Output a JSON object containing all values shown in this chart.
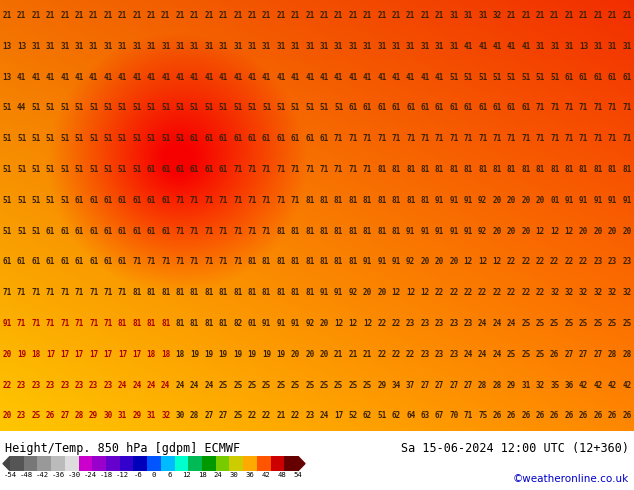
{
  "title_left": "Height/Temp. 850 hPa [gdpm] ECMWF",
  "title_right": "Sa 15-06-2024 12:00 UTC (12+360)",
  "credit": "©weatheronline.co.uk",
  "colorbar_ticks": [
    -54,
    -48,
    -42,
    -36,
    -30,
    -24,
    -18,
    -12,
    -6,
    0,
    6,
    12,
    18,
    24,
    30,
    36,
    42,
    48,
    54
  ],
  "colorbar_colors": [
    "#555555",
    "#777777",
    "#999999",
    "#bbbbbb",
    "#dddddd",
    "#cc00cc",
    "#9900cc",
    "#6600cc",
    "#3300cc",
    "#0000bb",
    "#0055ff",
    "#00bbff",
    "#00ffcc",
    "#00bb55",
    "#009900",
    "#77cc00",
    "#cccc00",
    "#ffaa00",
    "#ff5500",
    "#cc0000",
    "#660000"
  ],
  "numbers_text": [
    "21 21 21 21 21 21 21 21 21 21 21 21 21 21 21 21 21 21 21 21 21 21 21 21 21 21 21 21 21 21 21 31 31 31 32 21 21 21 21 21 21 21 21 21",
    "13 13 31 31 31 31 31 31 31 31 31 31 31 31 31 31 31 31 31 31 31 31 31 31 31 31 31 31 31 31 31 31 41 41 41 41 41 31 31 31 13 31 31 31",
    "13 41 41 41 41 41 41 41 41 41 41 41 41 41 41 41 41 41 41 41 41 41 41 41 41 41 41 41 41 41 41 51 51 51 51 51 51 51 51 61 61 61 61 61",
    "51 44 51 51 51 51 51 51 51 51 51 51 51 51 51 51 51 51 51 51 51 51 51 51 61 61 61 61 61 61 61 61 61 61 61 61 61 71 71 71 71 71 71 71",
    "51 51 51 51 51 51 51 51 51 51 51 51 51 61 61 61 61 61 61 61 61 61 61 71 71 71 71 71 71 71 71 71 71 71 71 71 71 71 71 71 71 71 71 71",
    "51 51 51 51 51 51 51 51 51 51 61 61 61 61 61 61 71 71 71 71 71 71 71 71 71 71 81 81 81 81 81 81 81 81 81 81 81 81 81 81 81 81 81 81",
    "51 51 51 51 51 61 61 61 61 61 61 61 71 71 71 71 71 71 71 71 71 81 81 81 81 81 81 81 81 81 91 91 91 92 20 20 20 20 01 91 91 91 91 91",
    "51 51 51 61 61 61 61 61 61 61 61 61 71 71 71 71 71 71 71 81 81 81 81 81 81 81 81 81 91 91 91 91 91 92 20 20 20 12 12 12 20 20 20 20",
    "61 61 61 61 61 61 61 61 61 71 71 71 71 71 71 71 71 81 81 81 81 81 81 81 81 91 91 91 92 20 20 20 12 12 12 22 22 22 22 22 22 23 23 23",
    "71 71 71 71 71 71 71 71 71 81 81 81 81 81 81 81 81 81 81 81 81 81 91 91 92 20 20 12 12 12 22 22 22 22 22 22 22 22 32 32 32 32 32 32",
    "91 71 71 71 71 71 71 71 81 81 81 81 81 81 81 81 82 01 91 91 91 92 20 12 12 12 22 22 23 23 23 23 23 24 24 24 25 25 25 25 25 25 25 25",
    "20 19 18 17 17 17 17 17 17 17 18 18 18 19 19 19 19 19 19 19 20 20 20 21 21 21 22 22 22 23 23 23 24 24 24 25 25 25 26 27 27 27 28 28",
    "22 23 23 23 23 23 23 23 24 24 24 24 24 24 24 25 25 25 25 25 25 25 25 25 25 25 29 34 37 27 27 27 27 28 28 29 31 32 35 36 42 42 42 42",
    "20 23 25 26 27 28 29 30 31 29 31 32 30 28 27 27 25 22 22 21 22 23 24 17 52 62 51 62 64 63 67 70 71 75 26 26 26 26 26 26 26 26 26 26"
  ],
  "fig_width": 6.34,
  "fig_height": 4.9,
  "dpi": 100
}
